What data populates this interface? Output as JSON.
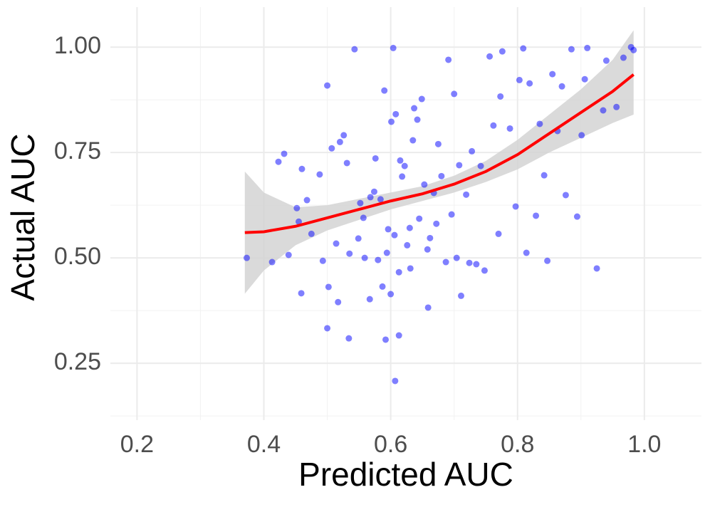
{
  "chart_data": {
    "type": "scatter",
    "x_label": "Predicted AUC",
    "y_label": "Actual AUC",
    "xlim": [
      0.158,
      1.09
    ],
    "ylim": [
      0.115,
      1.095
    ],
    "xticks": [
      0.2,
      0.4,
      0.6,
      0.8,
      {
        "value": 1,
        "label": "1.0"
      }
    ],
    "yticks": [
      {
        "value": 0.25,
        "label": "0.25"
      },
      {
        "value": 0.5,
        "label": "0.50"
      },
      {
        "value": 0.75,
        "label": "0.75"
      },
      {
        "value": 1,
        "label": "1.00"
      }
    ],
    "x_minor_grid": [
      0.3,
      0.5,
      0.7,
      0.9
    ],
    "y_minor_grid": [
      0.125,
      0.375,
      0.625,
      0.875
    ],
    "grid": true,
    "series": [
      {
        "color": "#0000ff",
        "x": [
          0.373,
          0.413,
          0.423,
          0.432,
          0.439,
          0.452,
          0.455,
          0.459,
          0.46,
          0.468,
          0.475,
          0.488,
          0.493,
          0.5,
          0.502,
          0.507,
          0.514,
          0.517,
          0.52,
          0.526,
          0.531,
          0.535,
          0.543,
          0.549,
          0.552,
          0.557,
          0.559,
          0.567,
          0.568,
          0.574,
          0.576,
          0.58,
          0.584,
          0.587,
          0.59,
          0.594,
          0.596,
          0.6,
          0.601,
          0.604,
          0.606,
          0.608,
          0.613,
          0.615,
          0.618,
          0.622,
          0.626,
          0.63,
          0.631,
          0.635,
          0.637,
          0.642,
          0.645,
          0.649,
          0.653,
          0.658,
          0.659,
          0.662,
          0.668,
          0.672,
          0.675,
          0.68,
          0.687,
          0.691,
          0.696,
          0.7,
          0.704,
          0.708,
          0.711,
          0.719,
          0.724,
          0.728,
          0.735,
          0.742,
          0.748,
          0.756,
          0.762,
          0.77,
          0.773,
          0.776,
          0.788,
          0.797,
          0.803,
          0.809,
          0.814,
          0.819,
          0.829,
          0.835,
          0.842,
          0.847,
          0.855,
          0.863,
          0.87,
          0.876,
          0.885,
          0.894,
          0.901,
          0.906,
          0.91,
          0.925,
          0.935,
          0.94,
          0.956,
          0.967,
          0.979,
          0.983,
          0.607,
          0.592,
          0.534,
          0.5,
          0.613
        ],
        "y": [
          0.5,
          0.49,
          0.728,
          0.747,
          0.507,
          0.618,
          0.586,
          0.416,
          0.711,
          0.637,
          0.557,
          0.698,
          0.493,
          0.909,
          0.431,
          0.76,
          0.534,
          0.395,
          0.775,
          0.791,
          0.725,
          0.51,
          0.995,
          0.546,
          0.63,
          0.595,
          0.5,
          0.402,
          0.644,
          0.657,
          0.736,
          0.495,
          0.639,
          0.432,
          0.897,
          0.512,
          0.568,
          0.414,
          0.823,
          0.998,
          0.554,
          0.841,
          0.466,
          0.731,
          0.693,
          0.718,
          0.53,
          0.571,
          0.475,
          0.779,
          0.855,
          0.828,
          0.593,
          0.877,
          0.674,
          0.52,
          0.382,
          0.547,
          0.654,
          0.581,
          0.77,
          0.694,
          0.49,
          0.97,
          0.603,
          0.889,
          0.5,
          0.72,
          0.41,
          0.65,
          0.488,
          0.753,
          0.485,
          0.718,
          0.47,
          0.978,
          0.814,
          0.557,
          0.883,
          0.99,
          0.807,
          0.622,
          0.922,
          0.997,
          0.512,
          0.914,
          0.6,
          0.818,
          0.696,
          0.493,
          0.936,
          0.801,
          0.907,
          0.649,
          0.995,
          0.598,
          0.791,
          0.924,
          0.998,
          0.475,
          0.85,
          0.968,
          0.858,
          0.975,
          1.0,
          0.993,
          0.208,
          0.306,
          0.309,
          0.333,
          0.316
        ]
      }
    ],
    "smooth": {
      "color": "#ff0000",
      "band_color": "#d3d3d3",
      "x": [
        0.37,
        0.4,
        0.45,
        0.5,
        0.55,
        0.6,
        0.65,
        0.7,
        0.75,
        0.8,
        0.85,
        0.9,
        0.95,
        0.983
      ],
      "y": [
        0.56,
        0.562,
        0.575,
        0.595,
        0.615,
        0.635,
        0.652,
        0.675,
        0.705,
        0.745,
        0.795,
        0.845,
        0.895,
        0.935
      ],
      "lower": [
        0.415,
        0.47,
        0.53,
        0.565,
        0.59,
        0.615,
        0.635,
        0.655,
        0.68,
        0.71,
        0.75,
        0.785,
        0.82,
        0.84
      ],
      "upper": [
        0.705,
        0.655,
        0.62,
        0.625,
        0.64,
        0.655,
        0.67,
        0.695,
        0.73,
        0.78,
        0.84,
        0.9,
        0.97,
        1.04
      ]
    }
  }
}
